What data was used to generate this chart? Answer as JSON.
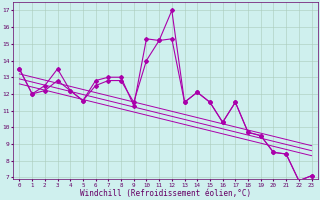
{
  "xlabel": "Windchill (Refroidissement éolien,°C)",
  "x": [
    0,
    1,
    2,
    3,
    4,
    5,
    6,
    7,
    8,
    9,
    10,
    11,
    12,
    13,
    14,
    15,
    16,
    17,
    18,
    19,
    20,
    21,
    22,
    23
  ],
  "line1": [
    13.5,
    12.0,
    12.5,
    13.5,
    12.2,
    11.6,
    12.8,
    13.0,
    13.0,
    11.3,
    15.3,
    15.2,
    17.0,
    11.5,
    12.1,
    11.5,
    10.3,
    11.5,
    9.7,
    9.5,
    8.5,
    8.4,
    6.8,
    7.1
  ],
  "line2": [
    13.5,
    12.0,
    12.2,
    12.8,
    12.2,
    11.6,
    12.5,
    12.8,
    12.8,
    11.5,
    14.0,
    15.2,
    15.3,
    11.5,
    12.1,
    11.5,
    10.3,
    11.5,
    9.7,
    9.5,
    8.5,
    8.4,
    6.8,
    7.1
  ],
  "color_line": "#aa00aa",
  "bg_color": "#cff0ee",
  "grid_color": "#aaccbb",
  "ylim": [
    7,
    17
  ],
  "xlim": [
    -0.5,
    23.5
  ],
  "trend_lines": [
    {
      "x0": 0,
      "y0": 13.2,
      "x1": 23,
      "y1": 8.9
    },
    {
      "x0": 0,
      "y0": 12.9,
      "x1": 23,
      "y1": 8.6
    },
    {
      "x0": 0,
      "y0": 12.6,
      "x1": 23,
      "y1": 8.3
    }
  ]
}
